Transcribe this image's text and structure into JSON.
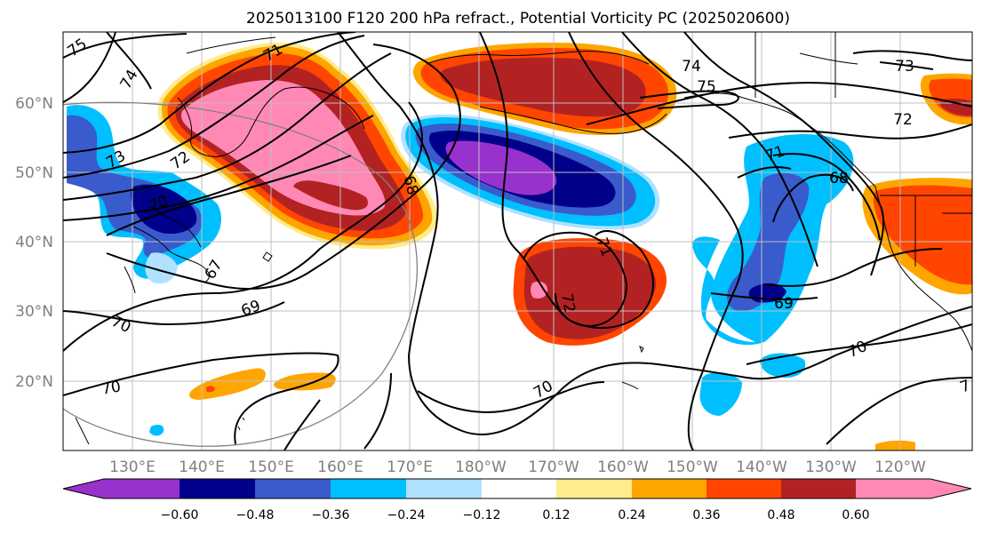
{
  "title": "2025013100 F120 200 hPa refract., Potential Vorticity PC (2025020600)",
  "map": {
    "lat_labels": [
      "60°N",
      "50°N",
      "40°N",
      "30°N",
      "20°N"
    ],
    "lon_labels": [
      "130°E",
      "140°E",
      "150°E",
      "160°E",
      "170°E",
      "180°W",
      "170°W",
      "160°W",
      "150°W",
      "140°W",
      "130°W",
      "120°W"
    ],
    "contour_labels": [
      "75",
      "74",
      "73",
      "72",
      "71",
      "70",
      "69",
      "68",
      "67",
      "75",
      "74",
      "73",
      "72",
      "71",
      "70",
      "69",
      "68",
      "72",
      "71",
      "70",
      "70",
      "69",
      "68",
      "70",
      "7"
    ]
  },
  "colorbar": {
    "ticks": [
      "−0.60",
      "−0.48",
      "−0.36",
      "−0.24",
      "−0.12",
      "0.12",
      "0.24",
      "0.36",
      "0.48",
      "0.60"
    ],
    "colors": [
      "#9932cc",
      "#00008b",
      "#3a5bcc",
      "#00bfff",
      "#b0e2ff",
      "#ffffff",
      "#ffec8b",
      "#ffa500",
      "#ff4500",
      "#b22222",
      "#ff89b4"
    ]
  }
}
